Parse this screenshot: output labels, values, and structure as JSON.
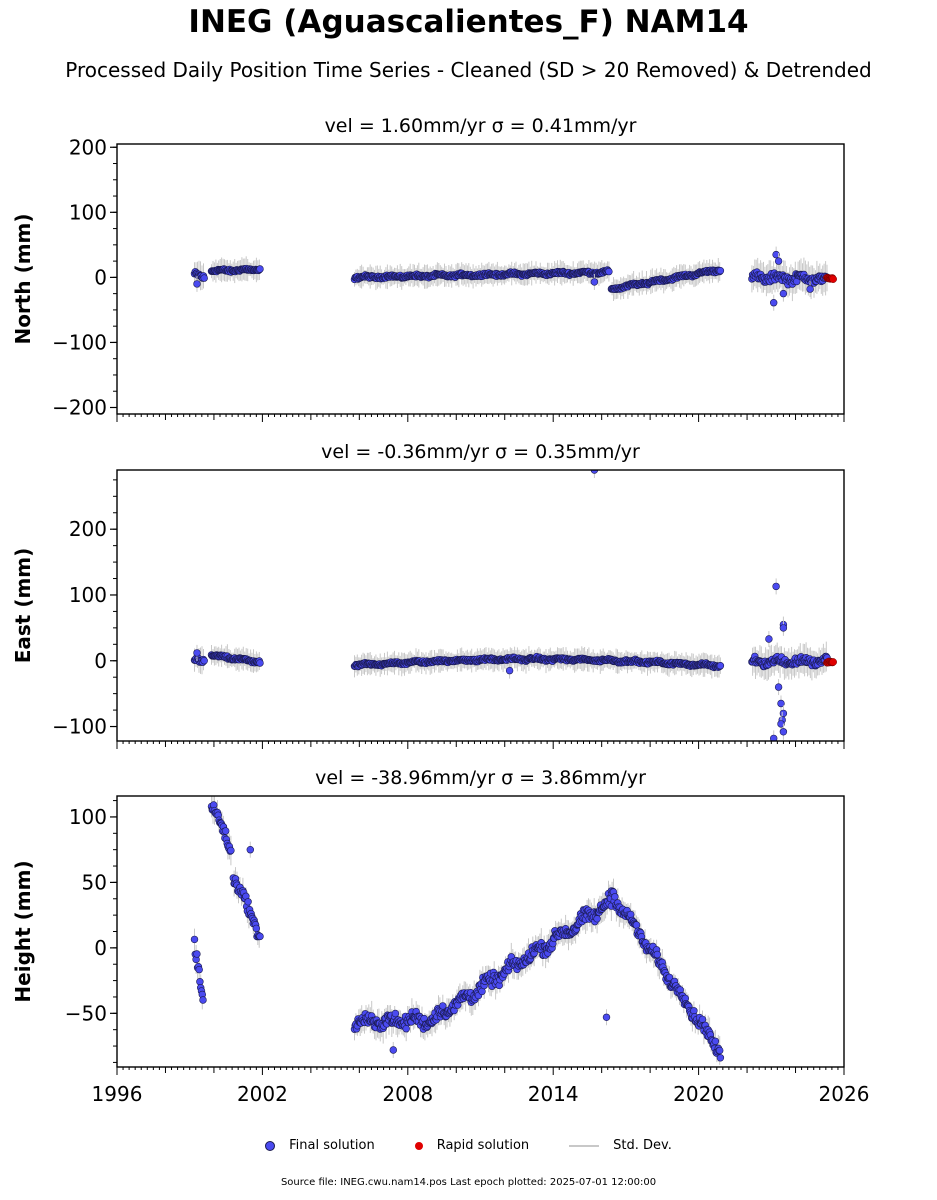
{
  "title": "INEG (Aguascalientes_F) NAM14",
  "subtitle": "Processed Daily Position Time Series - Cleaned (SD > 20 Removed) & Detrended",
  "colors": {
    "final": "#4a4af0",
    "rapid": "#e00000",
    "std_dev": "#c8c8c8",
    "edge": "#1a1a50"
  },
  "legend": {
    "final": "Final solution",
    "rapid": "Rapid solution",
    "std_dev": "Std. Dev."
  },
  "source_text": "Source file: INEG.cwu.nam14.pos  Last epoch plotted: 2025-07-01 12:00:00",
  "chart_data": [
    {
      "type": "scatter",
      "title": "vel = 1.60mm/yr   σ = 0.41mm/yr",
      "ylabel": "North (mm)",
      "xlim": [
        1996,
        2026
      ],
      "ylim": [
        -210,
        205
      ],
      "yticks": [
        -200,
        -100,
        0,
        100,
        200
      ],
      "ytick_labels": [
        "−200",
        "−100",
        "0",
        "100",
        "200"
      ],
      "segments": [
        {
          "x": [
            1999.2,
            1999.6
          ],
          "y": [
            3,
            0
          ],
          "spread": 6
        },
        {
          "x": [
            1999.9,
            2001.9
          ],
          "y": [
            10,
            12
          ],
          "spread": 3
        },
        {
          "x": [
            2005.8,
            2016.3
          ],
          "y": [
            0,
            8
          ],
          "spread": 3
        },
        {
          "x": [
            2016.4,
            2020.9
          ],
          "y": [
            -18,
            12
          ],
          "spread": 3
        },
        {
          "x": [
            2022.2,
            2025.3
          ],
          "y": [
            0,
            -2
          ],
          "spread": 9
        }
      ],
      "outliers": [
        {
          "x": 1999.3,
          "y": -10
        },
        {
          "x": 2015.7,
          "y": -7
        },
        {
          "x": 2023.2,
          "y": 35
        },
        {
          "x": 2023.3,
          "y": 25
        },
        {
          "x": 2023.1,
          "y": -39
        },
        {
          "x": 2023.5,
          "y": -25
        },
        {
          "x": 2024.6,
          "y": -18
        }
      ],
      "rapid": {
        "x": [
          2025.3,
          2025.55
        ],
        "y": [
          -2,
          -2
        ]
      }
    },
    {
      "type": "scatter",
      "title": "vel = -0.36mm/yr   σ = 0.35mm/yr",
      "ylabel": "East (mm)",
      "xlim": [
        1996,
        2026
      ],
      "ylim": [
        -122,
        290
      ],
      "yticks": [
        -100,
        0,
        100,
        200
      ],
      "ytick_labels": [
        "−100",
        "0",
        "100",
        "200"
      ],
      "segments": [
        {
          "x": [
            1999.2,
            1999.6
          ],
          "y": [
            0,
            0
          ],
          "spread": 5
        },
        {
          "x": [
            1999.9,
            2001.9
          ],
          "y": [
            8,
            -2
          ],
          "spread": 3
        },
        {
          "x": [
            2005.8,
            2020.9
          ],
          "y": [
            -7,
            -8
          ],
          "spread": 3,
          "bulge": 10
        },
        {
          "x": [
            2022.2,
            2025.3
          ],
          "y": [
            -1,
            -1
          ],
          "spread": 8
        }
      ],
      "outliers": [
        {
          "x": 1999.3,
          "y": 12
        },
        {
          "x": 2012.2,
          "y": -15
        },
        {
          "x": 2015.7,
          "y": 290
        },
        {
          "x": 2022.9,
          "y": 33
        },
        {
          "x": 2023.2,
          "y": 113
        },
        {
          "x": 2023.5,
          "y": 55
        },
        {
          "x": 2023.5,
          "y": 50
        },
        {
          "x": 2023.3,
          "y": -40
        },
        {
          "x": 2023.4,
          "y": -65
        },
        {
          "x": 2023.5,
          "y": -80
        },
        {
          "x": 2023.45,
          "y": -90
        },
        {
          "x": 2023.4,
          "y": -96
        },
        {
          "x": 2023.5,
          "y": -108
        },
        {
          "x": 2023.1,
          "y": -118
        }
      ],
      "rapid": {
        "x": [
          2025.3,
          2025.55
        ],
        "y": [
          -2,
          -2
        ]
      }
    },
    {
      "type": "scatter",
      "title": "vel = -38.96mm/yr   σ = 3.86mm/yr",
      "ylabel": "Height (mm)",
      "xlim": [
        1996,
        2026
      ],
      "xticks": [
        1996,
        2002,
        2008,
        2014,
        2020,
        2026
      ],
      "ylim": [
        -91,
        116
      ],
      "yticks": [
        -50,
        0,
        50,
        100
      ],
      "ytick_labels": [
        "−50",
        "0",
        "50",
        "100"
      ],
      "segments": [
        {
          "x": [
            1999.2,
            1999.55
          ],
          "y": [
            0,
            -40
          ],
          "spread": 8
        },
        {
          "x": [
            1999.9,
            2000.7
          ],
          "y": [
            110,
            75
          ],
          "spread": 6
        },
        {
          "x": [
            2000.8,
            2001.9
          ],
          "y": [
            55,
            10
          ],
          "spread": 6
        },
        {
          "x": [
            2005.8,
            2009.0
          ],
          "y": [
            -57,
            -55
          ],
          "spread": 7
        },
        {
          "x": [
            2009.0,
            2016.4
          ],
          "y": [
            -55,
            35
          ],
          "spread": 7
        },
        {
          "x": [
            2016.4,
            2020.9
          ],
          "y": [
            42,
            -80
          ],
          "spread": 6
        }
      ],
      "outliers": [
        {
          "x": 2016.2,
          "y": -53
        },
        {
          "x": 2001.5,
          "y": 75
        },
        {
          "x": 2007.4,
          "y": -78
        }
      ],
      "rapid": null
    }
  ]
}
